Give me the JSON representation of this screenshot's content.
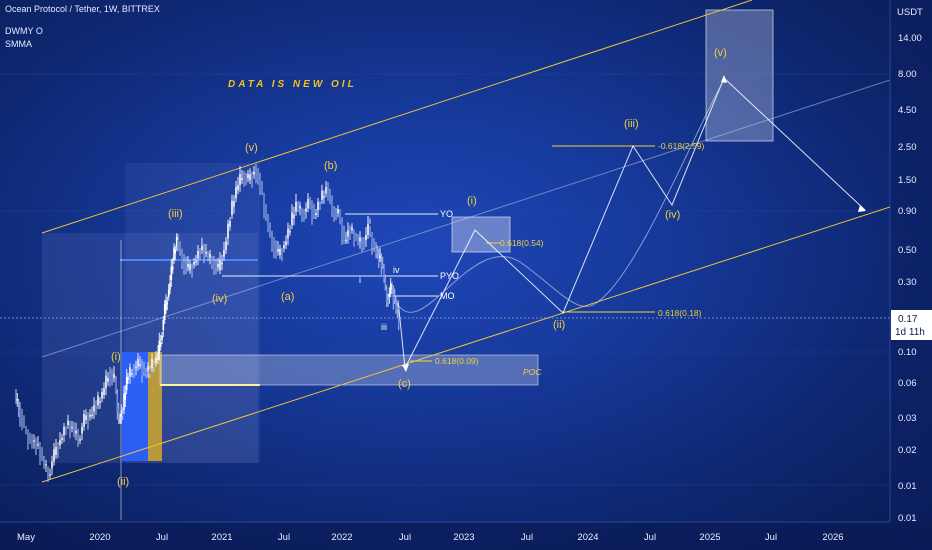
{
  "header": {
    "title": "Ocean Protocol / Tether, 1W, BITTREX",
    "indicator_1": "DWMY O",
    "indicator_2": "SMMA"
  },
  "banner": "DATA IS NEW OIL",
  "chart_data": {
    "type": "candlestick",
    "symbol": "Ocean Protocol / Tether",
    "interval": "1W",
    "exchange": "BITTREX",
    "currency": "USDT",
    "y_scale": "log",
    "y_ticks": [
      "14.00",
      "8.00",
      "4.50",
      "2.50",
      "1.50",
      "0.90",
      "0.50",
      "0.30",
      "0.10",
      "0.06",
      "0.03",
      "0.02",
      "0.01",
      "0.01"
    ],
    "x_ticks": [
      "May",
      "2020",
      "Jul",
      "2021",
      "Jul",
      "2022",
      "Jul",
      "2023",
      "Jul",
      "2024",
      "Jul",
      "2025",
      "Jul",
      "2026"
    ],
    "last_price": "0.17",
    "countdown": "1d 11h",
    "wave_labels": [
      "(i)",
      "(ii)",
      "(iii)",
      "(iv)",
      "(v)",
      "(a)",
      "(b)",
      "(c)",
      "i",
      "ii",
      "iii",
      "iv",
      "(i)",
      "(ii)",
      "(iii)",
      "(iv)",
      "(v)"
    ],
    "level_labels": [
      "YO",
      "PYO",
      "MO",
      "POC"
    ],
    "fib_labels": [
      "0.618(0.54)",
      "0.618(0.18)",
      "0.618(0.09)",
      "-0.618(2.59)"
    ]
  }
}
